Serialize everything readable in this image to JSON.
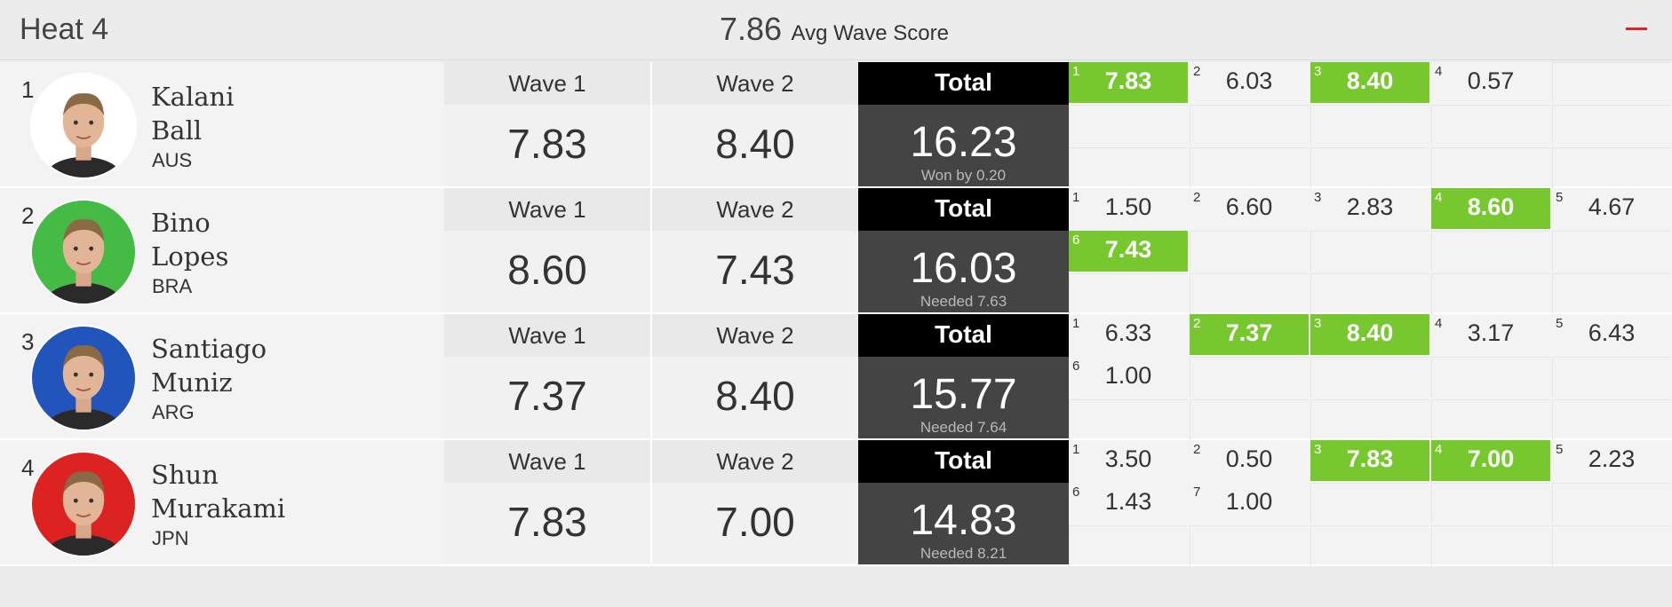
{
  "header": {
    "heat_title": "Heat 4",
    "avg_value": "7.86",
    "avg_label": "Avg Wave Score"
  },
  "colors": {
    "best_wave": "#77c72e",
    "total_head": "#000000",
    "total_body": "#444444",
    "collapse": "#e02424"
  },
  "labels": {
    "wave1": "Wave 1",
    "wave2": "Wave 2",
    "total": "Total"
  },
  "surfers": [
    {
      "rank": "1",
      "first": "Kalani",
      "last": "Ball",
      "country": "AUS",
      "wave1": "7.83",
      "wave2": "8.40",
      "total": "16.23",
      "note": "Won by 0.20",
      "avatar_bg": "#ffffff",
      "avatar_icon": "surfer-photo",
      "waves": [
        {
          "n": "1",
          "s": "7.83",
          "best": true
        },
        {
          "n": "2",
          "s": "6.03",
          "best": false
        },
        {
          "n": "3",
          "s": "8.40",
          "best": true
        },
        {
          "n": "4",
          "s": "0.57",
          "best": false
        }
      ]
    },
    {
      "rank": "2",
      "first": "Bino",
      "last": "Lopes",
      "country": "BRA",
      "wave1": "8.60",
      "wave2": "7.43",
      "total": "16.03",
      "note": "Needed 7.63",
      "avatar_bg": "#44bb44",
      "avatar_icon": "surfer-photo",
      "waves": [
        {
          "n": "1",
          "s": "1.50",
          "best": false
        },
        {
          "n": "2",
          "s": "6.60",
          "best": false
        },
        {
          "n": "3",
          "s": "2.83",
          "best": false
        },
        {
          "n": "4",
          "s": "8.60",
          "best": true
        },
        {
          "n": "5",
          "s": "4.67",
          "best": false
        },
        {
          "n": "6",
          "s": "7.43",
          "best": true
        }
      ]
    },
    {
      "rank": "3",
      "first": "Santiago",
      "last": "Muniz",
      "country": "ARG",
      "wave1": "7.37",
      "wave2": "8.40",
      "total": "15.77",
      "note": "Needed 7.64",
      "avatar_bg": "#2255bb",
      "avatar_icon": "surfer-photo",
      "waves": [
        {
          "n": "1",
          "s": "6.33",
          "best": false
        },
        {
          "n": "2",
          "s": "7.37",
          "best": true
        },
        {
          "n": "3",
          "s": "8.40",
          "best": true
        },
        {
          "n": "4",
          "s": "3.17",
          "best": false
        },
        {
          "n": "5",
          "s": "6.43",
          "best": false
        },
        {
          "n": "6",
          "s": "1.00",
          "best": false
        }
      ]
    },
    {
      "rank": "4",
      "first": "Shun",
      "last": "Murakami",
      "country": "JPN",
      "wave1": "7.83",
      "wave2": "7.00",
      "total": "14.83",
      "note": "Needed 8.21",
      "avatar_bg": "#dd2222",
      "avatar_icon": "surfer-photo",
      "waves": [
        {
          "n": "1",
          "s": "3.50",
          "best": false
        },
        {
          "n": "2",
          "s": "0.50",
          "best": false
        },
        {
          "n": "3",
          "s": "7.83",
          "best": true
        },
        {
          "n": "4",
          "s": "7.00",
          "best": true
        },
        {
          "n": "5",
          "s": "2.23",
          "best": false
        },
        {
          "n": "6",
          "s": "1.43",
          "best": false
        },
        {
          "n": "7",
          "s": "1.00",
          "best": false
        }
      ]
    }
  ]
}
